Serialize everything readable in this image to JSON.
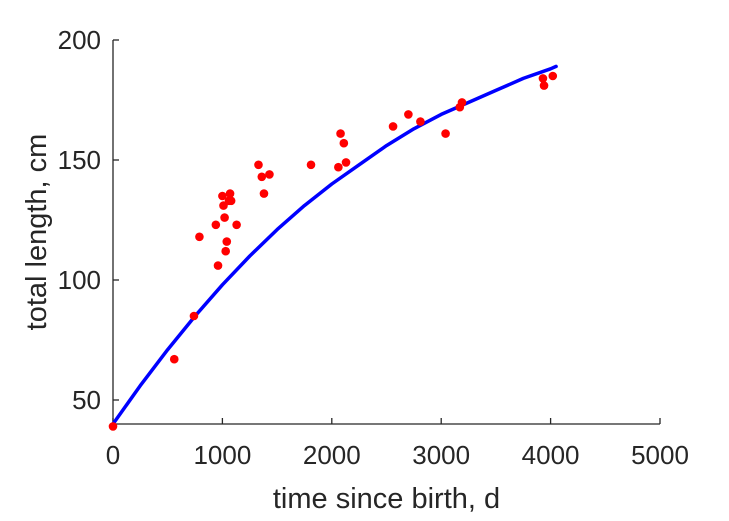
{
  "chart_data": {
    "type": "scatter",
    "title": "",
    "xlabel": "time since birth, d",
    "ylabel": "total length, cm",
    "xlim": [
      0,
      5000
    ],
    "ylim": [
      40,
      200
    ],
    "xticks": [
      0,
      1000,
      2000,
      3000,
      4000,
      5000
    ],
    "yticks": [
      50,
      100,
      150,
      200
    ],
    "grid": false,
    "legend": "none",
    "series": [
      {
        "type": "scatter",
        "color": "#ff0000",
        "points": [
          [
            0,
            39
          ],
          [
            560,
            67
          ],
          [
            740,
            85
          ],
          [
            790,
            118
          ],
          [
            940,
            123
          ],
          [
            960,
            106
          ],
          [
            1000,
            135
          ],
          [
            1010,
            131
          ],
          [
            1020,
            126
          ],
          [
            1030,
            112
          ],
          [
            1040,
            116
          ],
          [
            1060,
            133
          ],
          [
            1070,
            136
          ],
          [
            1080,
            133
          ],
          [
            1130,
            123
          ],
          [
            1330,
            148
          ],
          [
            1360,
            143
          ],
          [
            1380,
            136
          ],
          [
            1430,
            144
          ],
          [
            1810,
            148
          ],
          [
            2060,
            147
          ],
          [
            2080,
            161
          ],
          [
            2110,
            157
          ],
          [
            2130,
            149
          ],
          [
            2560,
            164
          ],
          [
            2700,
            169
          ],
          [
            2810,
            166
          ],
          [
            3040,
            161
          ],
          [
            3170,
            172
          ],
          [
            3190,
            174
          ],
          [
            3930,
            184
          ],
          [
            3940,
            181
          ],
          [
            4020,
            185
          ]
        ]
      },
      {
        "type": "line",
        "color": "#0000ff",
        "points": [
          [
            0,
            40
          ],
          [
            250,
            56
          ],
          [
            500,
            71
          ],
          [
            750,
            85
          ],
          [
            1000,
            98
          ],
          [
            1250,
            110
          ],
          [
            1500,
            121
          ],
          [
            1750,
            131
          ],
          [
            2000,
            140
          ],
          [
            2250,
            148
          ],
          [
            2500,
            156
          ],
          [
            2750,
            163
          ],
          [
            3000,
            169
          ],
          [
            3250,
            174
          ],
          [
            3500,
            179
          ],
          [
            3750,
            184
          ],
          [
            4000,
            188
          ],
          [
            4050,
            189
          ]
        ]
      }
    ]
  }
}
